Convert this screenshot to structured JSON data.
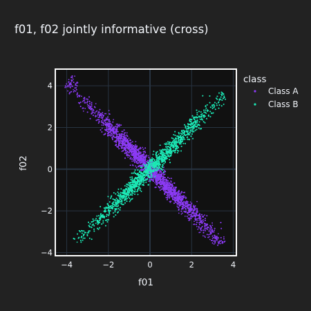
{
  "chart_data": {
    "type": "scatter",
    "title": "f01, f02 jointly informative (cross)",
    "xlabel": "f01",
    "ylabel": "f02",
    "xlim": [
      -4.55,
      4.15
    ],
    "ylim": [
      -4.15,
      4.8
    ],
    "x_ticks": [
      -4,
      -2,
      0,
      2,
      4
    ],
    "y_ticks": [
      -4,
      -2,
      0,
      2,
      4
    ],
    "grid": true,
    "legend": {
      "title": "class",
      "placement": "top-right, outside plot"
    },
    "series": [
      {
        "name": "Class A",
        "color": "#8c3bf5",
        "points": [
          [
            -3.9,
            4.3
          ],
          [
            -3.85,
            4.05
          ],
          [
            -3.5,
            3.6
          ],
          [
            -3.2,
            3.3
          ],
          [
            -3.0,
            3.1
          ],
          [
            -2.6,
            2.75
          ],
          [
            -2.3,
            2.45
          ],
          [
            -2.1,
            2.2
          ],
          [
            -1.9,
            1.95
          ],
          [
            -1.7,
            1.8
          ],
          [
            -1.5,
            1.55
          ],
          [
            -1.3,
            1.35
          ],
          [
            -1.1,
            1.15
          ],
          [
            -0.9,
            0.95
          ],
          [
            -0.7,
            0.75
          ],
          [
            -0.5,
            0.5
          ],
          [
            -0.3,
            0.3
          ],
          [
            -0.1,
            0.1
          ],
          [
            0.1,
            -0.1
          ],
          [
            0.3,
            -0.3
          ],
          [
            0.5,
            -0.5
          ],
          [
            0.7,
            -0.75
          ],
          [
            0.9,
            -0.95
          ],
          [
            1.1,
            -1.15
          ],
          [
            1.3,
            -1.35
          ],
          [
            1.5,
            -1.55
          ],
          [
            1.7,
            -1.8
          ],
          [
            1.9,
            -1.95
          ],
          [
            2.1,
            -2.2
          ],
          [
            2.3,
            -2.45
          ],
          [
            2.5,
            -2.6
          ],
          [
            2.7,
            -2.85
          ],
          [
            2.9,
            -3.0
          ],
          [
            3.1,
            -3.2
          ],
          [
            3.2,
            -3.4
          ],
          [
            3.5,
            -3.55
          ]
        ],
        "spread": 0.16,
        "n_points": 6000
      },
      {
        "name": "Class B",
        "color": "#1de9b6",
        "points": [
          [
            -3.5,
            -3.5
          ],
          [
            -3.2,
            -3.2
          ],
          [
            -3.0,
            -3.05
          ],
          [
            -2.8,
            -2.8
          ],
          [
            -2.6,
            -2.6
          ],
          [
            -2.4,
            -2.4
          ],
          [
            -2.2,
            -2.25
          ],
          [
            -2.0,
            -2.0
          ],
          [
            -1.8,
            -1.8
          ],
          [
            -1.6,
            -1.6
          ],
          [
            -1.4,
            -1.4
          ],
          [
            -1.2,
            -1.2
          ],
          [
            -1.0,
            -1.0
          ],
          [
            -0.8,
            -0.8
          ],
          [
            -0.6,
            -0.6
          ],
          [
            -0.4,
            -0.4
          ],
          [
            -0.2,
            -0.2
          ],
          [
            0.0,
            0.0
          ],
          [
            0.2,
            0.2
          ],
          [
            0.4,
            0.4
          ],
          [
            0.6,
            0.6
          ],
          [
            0.8,
            0.8
          ],
          [
            1.0,
            1.0
          ],
          [
            1.2,
            1.2
          ],
          [
            1.4,
            1.4
          ],
          [
            1.6,
            1.6
          ],
          [
            1.8,
            1.8
          ],
          [
            2.0,
            2.0
          ],
          [
            2.2,
            2.2
          ],
          [
            2.4,
            2.4
          ],
          [
            2.6,
            2.6
          ],
          [
            2.8,
            2.8
          ],
          [
            3.0,
            3.0
          ],
          [
            3.2,
            3.15
          ],
          [
            3.4,
            3.35
          ],
          [
            3.5,
            3.6
          ]
        ],
        "spread": 0.16,
        "n_points": 6000
      }
    ]
  },
  "colors": {
    "paper_bg": "#222222",
    "plot_bg": "#111111",
    "grid": "#283442",
    "zero_line": "#283442",
    "frame": "#ffffff",
    "text": "#f2f5fa"
  }
}
